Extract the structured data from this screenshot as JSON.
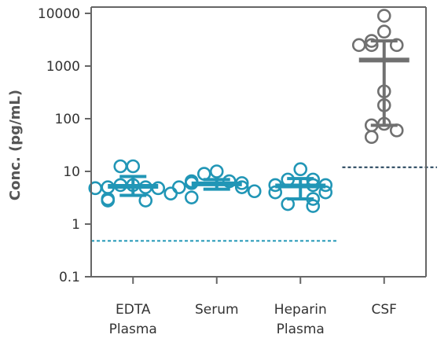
{
  "chart_data": {
    "type": "scatter",
    "ylabel": "Conc. (pg/mL)",
    "yscale": "log",
    "ylim": [
      0.1,
      10000
    ],
    "yticks": [
      "10000",
      "1000",
      "100",
      "10",
      "1",
      "0.1"
    ],
    "yticks_values": [
      10000,
      1000,
      100,
      10,
      1,
      0.1
    ],
    "grid": false,
    "categories": [
      {
        "line1": "EDTA",
        "line2": "Plasma"
      },
      {
        "line1": "Serum",
        "line2": ""
      },
      {
        "line1": "Heparin",
        "line2": "Plasma"
      },
      {
        "line1": "CSF",
        "line2": ""
      }
    ],
    "series": [
      {
        "category": 0,
        "color": "#2196b6",
        "points": [
          12.5,
          12.5,
          5.5,
          5.5,
          5.0,
          5.0,
          4.8,
          4.8,
          3.8,
          3.0,
          2.8,
          2.8
        ],
        "median": 5.2,
        "q1": 3.5,
        "q3": 8.0
      },
      {
        "category": 1,
        "color": "#2196b6",
        "points": [
          10.0,
          9.0,
          6.5,
          6.5,
          6.0,
          6.0,
          5.0,
          5.0,
          4.2,
          3.2
        ],
        "median": 5.8,
        "q1": 4.6,
        "q3": 7.0
      },
      {
        "category": 2,
        "color": "#2196b6",
        "points": [
          11.0,
          7.0,
          7.0,
          5.5,
          5.5,
          5.5,
          4.0,
          4.0,
          3.0,
          2.4,
          2.2
        ],
        "median": 5.3,
        "q1": 3.0,
        "q3": 7.3
      },
      {
        "category": 3,
        "color": "#707070",
        "points": [
          9000,
          4500,
          3000,
          2500,
          2500,
          2500,
          330,
          180,
          80,
          75,
          60,
          45
        ],
        "median": 1300,
        "q1": 75,
        "q3": 3000
      }
    ],
    "reference_lines": [
      {
        "value": 0.48,
        "color": "#2196b6",
        "span": "EDTA Plasma to Heparin Plasma"
      },
      {
        "value": 12,
        "color": "#1d3d55",
        "span": "CSF"
      }
    ]
  }
}
